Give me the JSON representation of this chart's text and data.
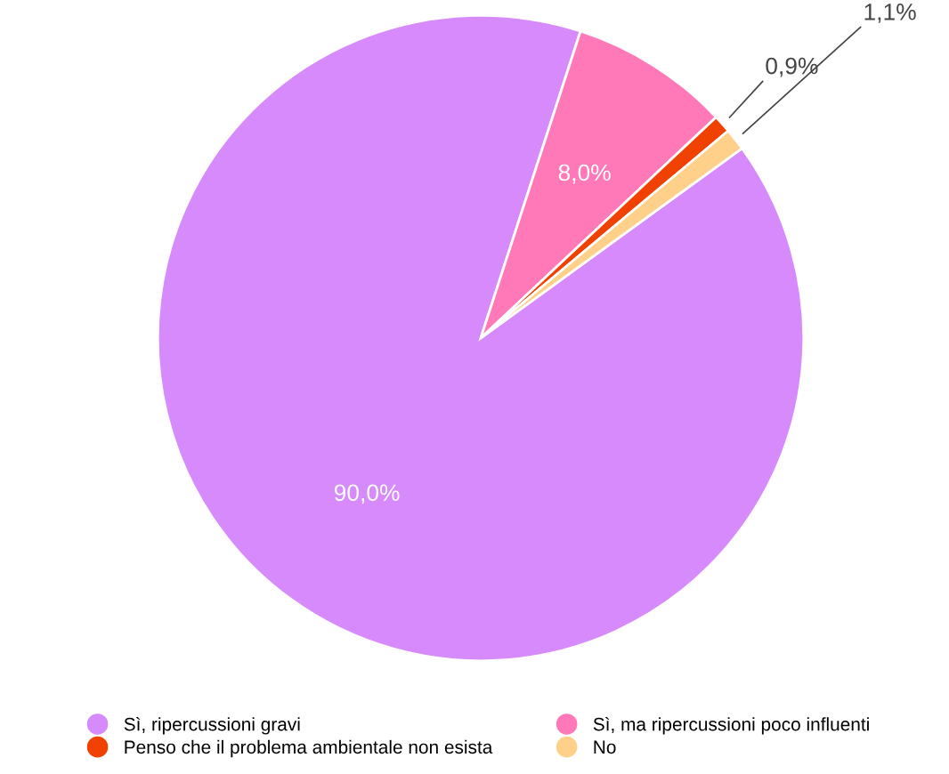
{
  "chart_data": {
    "type": "pie",
    "categories": [
      "Sì, ripercussioni gravi",
      "Sì, ma ripercussioni poco influenti",
      "Penso che il problema ambientale non esista",
      "No"
    ],
    "values": [
      90.0,
      8.0,
      0.9,
      1.1
    ],
    "colors": [
      "#d68afc",
      "#ff79b8",
      "#f04100",
      "#ffd08a"
    ],
    "value_labels": [
      "90,0%",
      "8,0%",
      "0,9%",
      "1,1%"
    ],
    "legend": "bottom"
  }
}
